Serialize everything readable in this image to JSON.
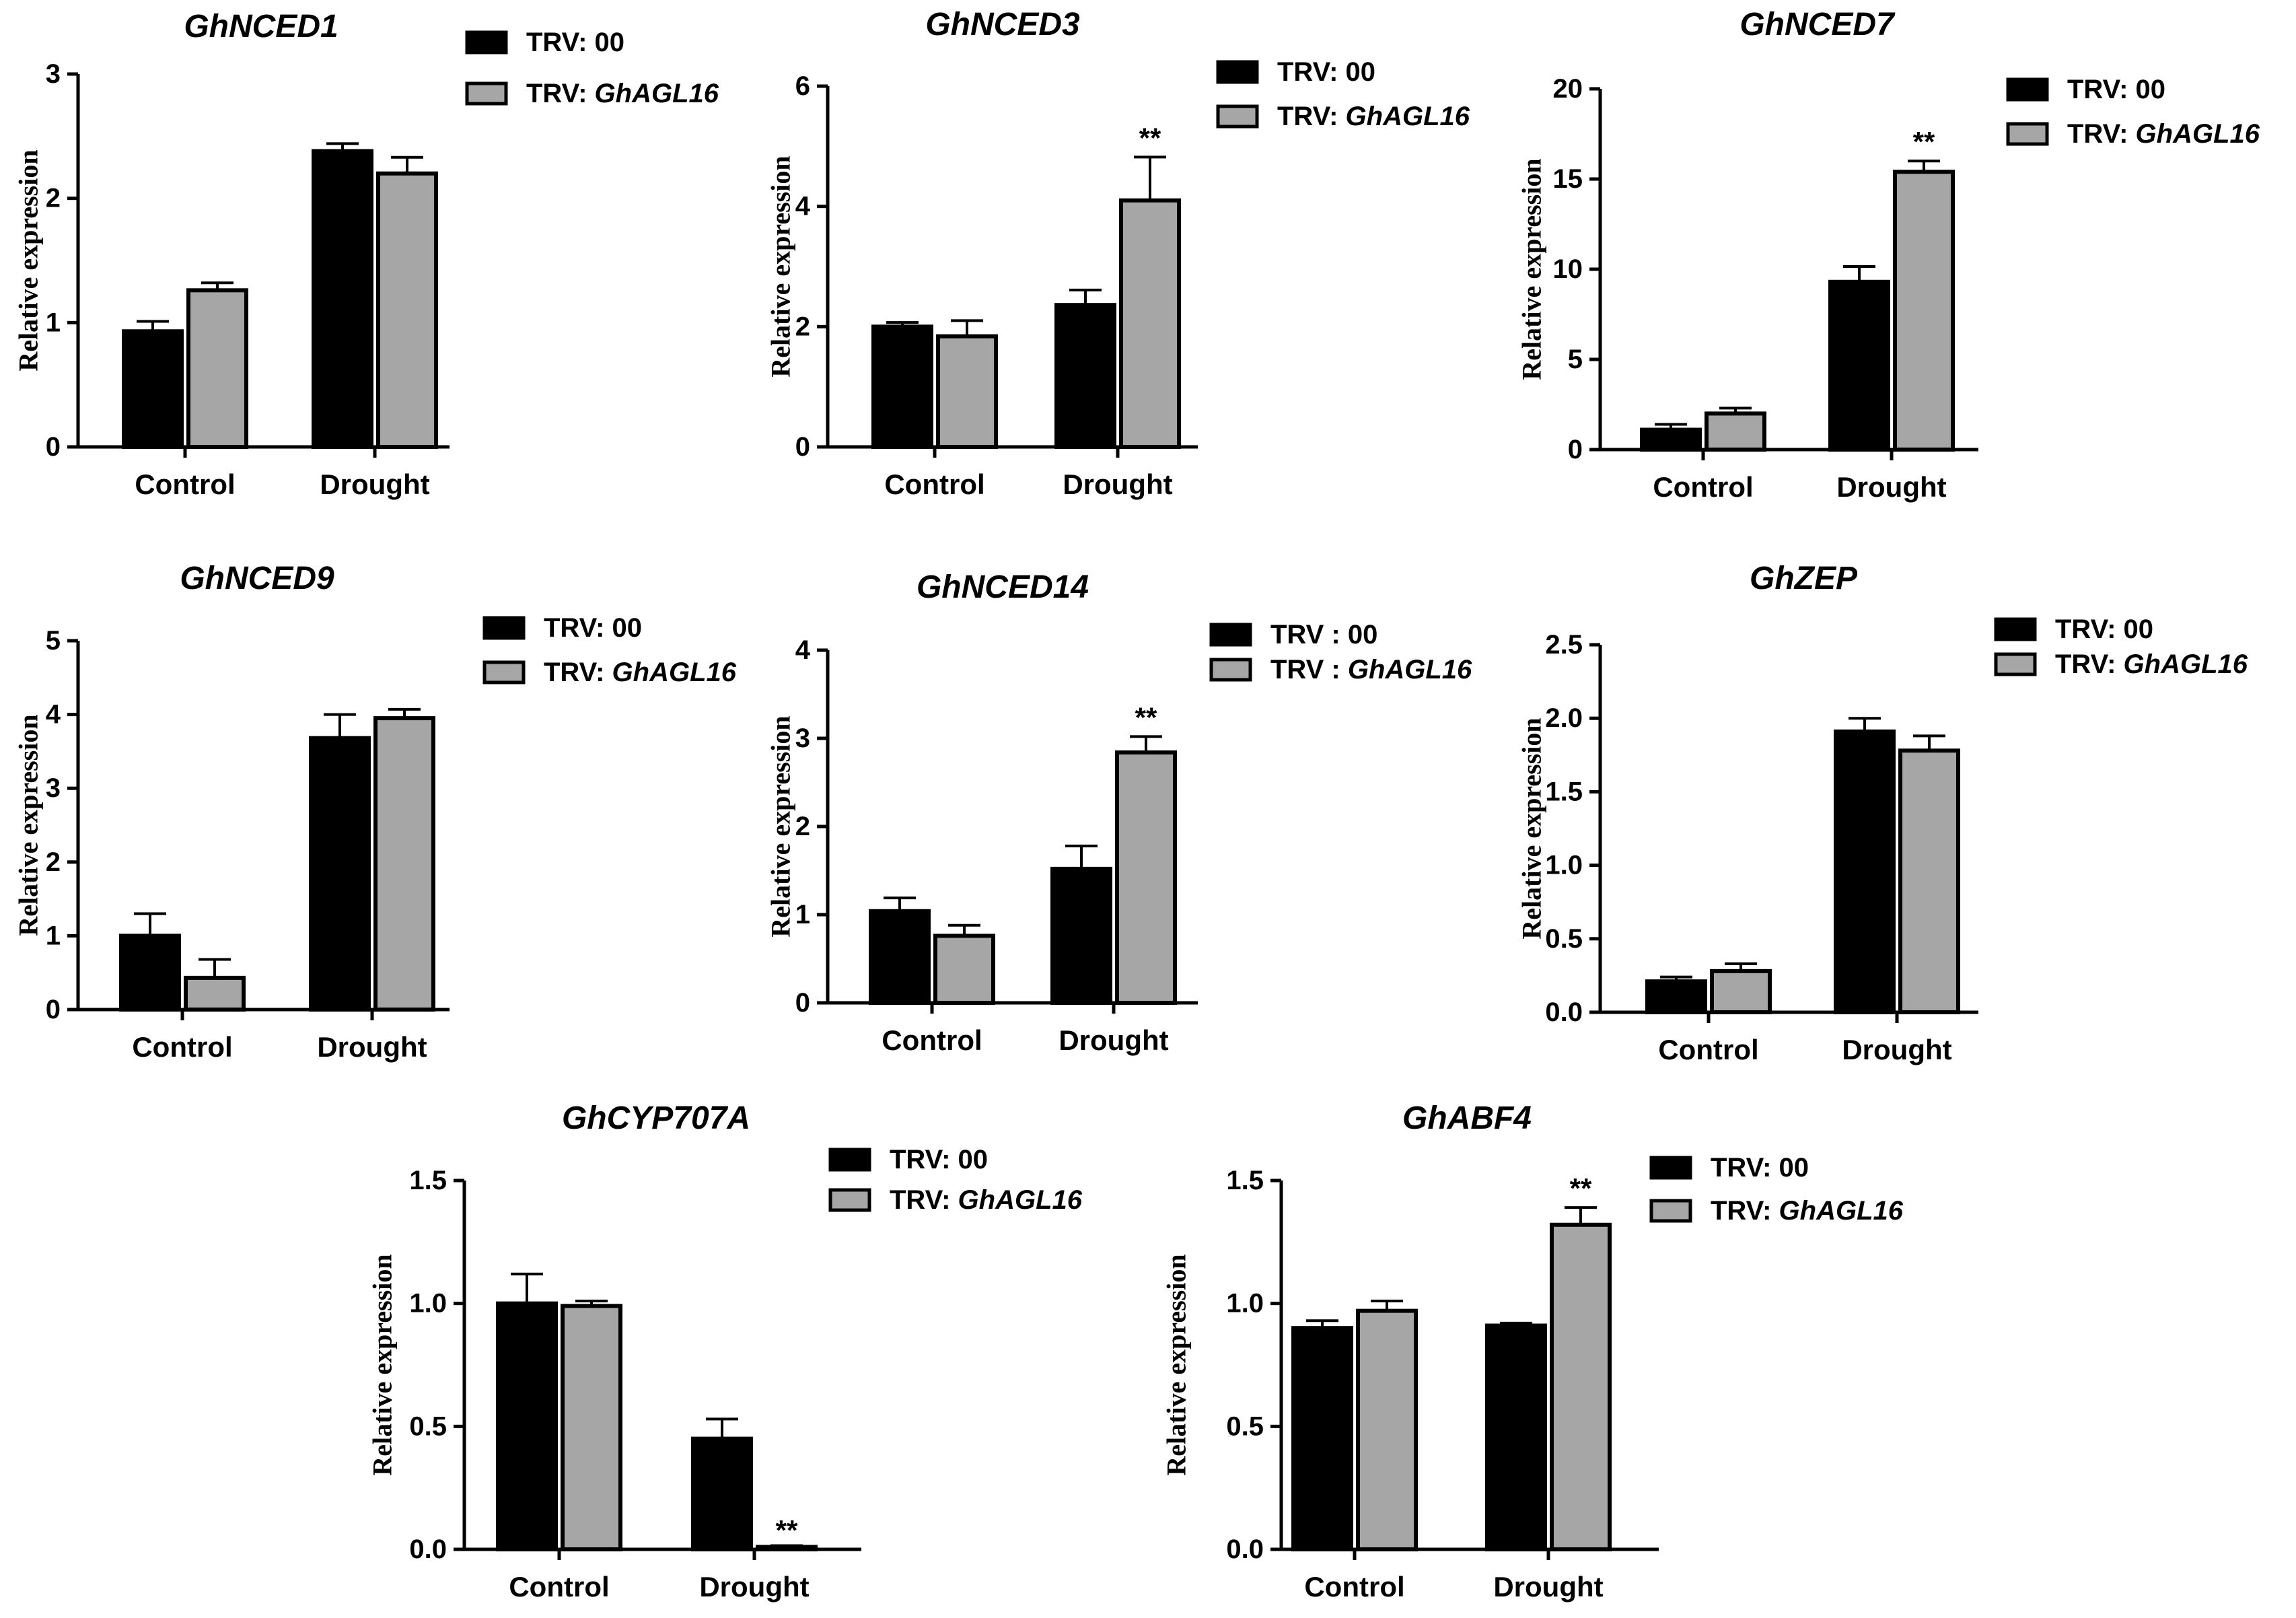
{
  "chart_data": [
    {
      "type": "bar",
      "title": "GhNCED1",
      "ylabel": "Relative expression",
      "categories": [
        "Control",
        "Drought"
      ],
      "ylim": [
        0,
        3
      ],
      "yticks": [
        "0",
        "1",
        "2",
        "3"
      ],
      "series": [
        {
          "name": "TRV: 00",
          "name_prefix": "TRV: ",
          "name_gene": "00",
          "color": "#000000",
          "values": [
            0.93,
            2.38
          ],
          "errors": [
            0.08,
            0.06
          ]
        },
        {
          "name": "TRV: GhAGL16",
          "name_prefix": "TRV: ",
          "name_gene": "GhAGL16",
          "color": "#a6a6a6",
          "values": [
            1.26,
            2.2
          ],
          "errors": [
            0.06,
            0.13
          ]
        }
      ],
      "annotations": []
    },
    {
      "type": "bar",
      "title": "GhNCED3",
      "ylabel": "Relative expression",
      "categories": [
        "Control",
        "Drought"
      ],
      "ylim": [
        0,
        6
      ],
      "yticks": [
        "0",
        "2",
        "4",
        "6"
      ],
      "series": [
        {
          "name": "TRV: 00",
          "name_prefix": "TRV: ",
          "name_gene": "00",
          "color": "#000000",
          "values": [
            2.0,
            2.36
          ],
          "errors": [
            0.07,
            0.25
          ]
        },
        {
          "name": "TRV: GhAGL16",
          "name_prefix": "TRV: ",
          "name_gene": "GhAGL16",
          "color": "#a6a6a6",
          "values": [
            1.84,
            4.1
          ],
          "errors": [
            0.26,
            0.72
          ]
        }
      ],
      "annotations": [
        {
          "label": "**",
          "category": 1,
          "series": 1
        }
      ]
    },
    {
      "type": "bar",
      "title": "GhNCED7",
      "ylabel": "Relative expression",
      "categories": [
        "Control",
        "Drought"
      ],
      "ylim": [
        0,
        20
      ],
      "yticks": [
        "0",
        "5",
        "10",
        "15",
        "20"
      ],
      "series": [
        {
          "name": "TRV: 00",
          "name_prefix": "TRV: ",
          "name_gene": "00",
          "color": "#000000",
          "values": [
            1.1,
            9.3
          ],
          "errors": [
            0.3,
            0.85
          ]
        },
        {
          "name": "TRV: GhAGL16",
          "name_prefix": "TRV: ",
          "name_gene": "GhAGL16",
          "color": "#a6a6a6",
          "values": [
            2.0,
            15.4
          ],
          "errors": [
            0.3,
            0.6
          ]
        }
      ],
      "annotations": [
        {
          "label": "**",
          "category": 1,
          "series": 1
        }
      ]
    },
    {
      "type": "bar",
      "title": "GhNCED9",
      "ylabel": "Relative expression",
      "categories": [
        "Control",
        "Drought"
      ],
      "ylim": [
        0,
        5
      ],
      "yticks": [
        "0",
        "1",
        "2",
        "3",
        "4",
        "5"
      ],
      "series": [
        {
          "name": "TRV: 00",
          "name_prefix": "TRV: ",
          "name_gene": "00",
          "color": "#000000",
          "values": [
            1.0,
            3.68
          ],
          "errors": [
            0.3,
            0.32
          ]
        },
        {
          "name": "TRV: GhAGL16",
          "name_prefix": "TRV: ",
          "name_gene": "GhAGL16",
          "color": "#a6a6a6",
          "values": [
            0.43,
            3.95
          ],
          "errors": [
            0.25,
            0.12
          ]
        }
      ],
      "annotations": []
    },
    {
      "type": "bar",
      "title": "GhNCED14",
      "ylabel": "Relative expression",
      "categories": [
        "Control",
        "Drought"
      ],
      "ylim": [
        0,
        4
      ],
      "yticks": [
        "0",
        "1",
        "2",
        "3",
        "4"
      ],
      "series": [
        {
          "name": "TRV : 00",
          "name_prefix": "TRV : ",
          "name_gene": "00",
          "color": "#000000",
          "values": [
            1.04,
            1.52
          ],
          "errors": [
            0.15,
            0.26
          ]
        },
        {
          "name": "TRV : GhAGL16",
          "name_prefix": "TRV : ",
          "name_gene": "GhAGL16",
          "color": "#a6a6a6",
          "values": [
            0.76,
            2.84
          ],
          "errors": [
            0.12,
            0.18
          ]
        }
      ],
      "annotations": [
        {
          "label": "**",
          "category": 1,
          "series": 1
        }
      ]
    },
    {
      "type": "bar",
      "title": "GhZEP",
      "ylabel": "Relative expression",
      "categories": [
        "Control",
        "Drought"
      ],
      "ylim": [
        0,
        2.5
      ],
      "yticks": [
        "0.0",
        "0.5",
        "1.0",
        "1.5",
        "2.0",
        "2.5"
      ],
      "series": [
        {
          "name": "TRV: 00",
          "name_prefix": "TRV: ",
          "name_gene": "00",
          "color": "#000000",
          "values": [
            0.21,
            1.91
          ],
          "errors": [
            0.03,
            0.09
          ]
        },
        {
          "name": "TRV: GhAGL16",
          "name_prefix": "TRV: ",
          "name_gene": "GhAGL16",
          "color": "#a6a6a6",
          "values": [
            0.28,
            1.78
          ],
          "errors": [
            0.05,
            0.1
          ]
        }
      ],
      "annotations": []
    },
    {
      "type": "bar",
      "title": "GhCYP707A",
      "ylabel": "Relative expression",
      "categories": [
        "Control",
        "Drought"
      ],
      "ylim": [
        0,
        1.5
      ],
      "yticks": [
        "0.0",
        "0.5",
        "1.0",
        "1.5"
      ],
      "series": [
        {
          "name": "TRV: 00",
          "name_prefix": "TRV: ",
          "name_gene": "00",
          "color": "#000000",
          "values": [
            1.0,
            0.45
          ],
          "errors": [
            0.12,
            0.08
          ]
        },
        {
          "name": "TRV: GhAGL16",
          "name_prefix": "TRV: ",
          "name_gene": "GhAGL16",
          "color": "#a6a6a6",
          "values": [
            0.99,
            0.01
          ],
          "errors": [
            0.02,
            0.005
          ]
        }
      ],
      "annotations": [
        {
          "label": "**",
          "category": 1,
          "series": 1
        }
      ]
    },
    {
      "type": "bar",
      "title": "GhABF4",
      "ylabel": "Relative expression",
      "categories": [
        "Control",
        "Drought"
      ],
      "ylim": [
        0,
        1.5
      ],
      "yticks": [
        "0.0",
        "0.5",
        "1.0",
        "1.5"
      ],
      "series": [
        {
          "name": "TRV: 00",
          "name_prefix": "TRV: ",
          "name_gene": "00",
          "color": "#000000",
          "values": [
            0.9,
            0.91
          ],
          "errors": [
            0.03,
            0.01
          ]
        },
        {
          "name": "TRV: GhAGL16",
          "name_prefix": "TRV: ",
          "name_gene": "GhAGL16",
          "color": "#a6a6a6",
          "values": [
            0.97,
            1.32
          ],
          "errors": [
            0.04,
            0.07
          ]
        }
      ],
      "annotations": [
        {
          "label": "**",
          "category": 1,
          "series": 1
        }
      ]
    }
  ]
}
